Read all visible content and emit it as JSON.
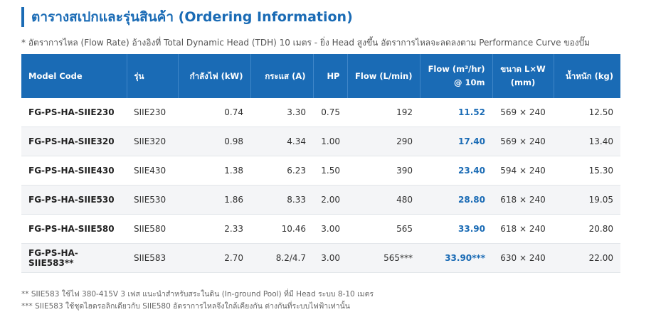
{
  "header": {
    "title": "ตารางสเปกและรุ่นสินค้า (Ordering Information)",
    "note": "* อัตราการไหล (Flow Rate) อ้างอิงที่ Total Dynamic Head (TDH) 10 เมตร - ยิ่ง Head สูงขึ้น อัตราการไหลจะลดลงตาม Performance Curve ของปั๊ม"
  },
  "table": {
    "headers": [
      [
        "Model Code"
      ],
      [
        "รุ่น"
      ],
      [
        "กำลังไฟ (kW)"
      ],
      [
        "กระแส (A)"
      ],
      [
        "HP"
      ],
      [
        "Flow (L/min)"
      ],
      [
        "Flow (m³/hr)",
        "@ 10m"
      ],
      [
        "ขนาด L×W",
        "(mm)"
      ],
      [
        "น้ำหนัก (kg)"
      ]
    ],
    "rows": [
      [
        "FG-PS-HA-SIIE230",
        "SIIE230",
        "0.74",
        "3.30",
        "0.75",
        "192",
        "11.52",
        "569 × 240",
        "12.50"
      ],
      [
        "FG-PS-HA-SIIE320",
        "SIIE320",
        "0.98",
        "4.34",
        "1.00",
        "290",
        "17.40",
        "569 × 240",
        "13.40"
      ],
      [
        "FG-PS-HA-SIIE430",
        "SIIE430",
        "1.38",
        "6.23",
        "1.50",
        "390",
        "23.40",
        "594 × 240",
        "15.30"
      ],
      [
        "FG-PS-HA-SIIE530",
        "SIIE530",
        "1.86",
        "8.33",
        "2.00",
        "480",
        "28.80",
        "618 × 240",
        "19.05"
      ],
      [
        "FG-PS-HA-SIIE580",
        "SIIE580",
        "2.33",
        "10.46",
        "3.00",
        "565",
        "33.90",
        "618 × 240",
        "20.80"
      ],
      [
        "FG-PS-HA-SIIE583**",
        "SIIE583",
        "2.70",
        "8.2/4.7",
        "3.00",
        "565***",
        "33.90***",
        "630 × 240",
        "22.00"
      ]
    ]
  },
  "footnotes": [
    "** SIIE583 ใช้ไฟ 380-415V 3 เฟส แนะนำสำหรับสระในดิน (In-ground Pool) ที่มี Head ระบบ 8-10 เมตร",
    "*** SIIE583 ใช้ชุดไฮดรอลิกเดียวกับ SIIE580 อัตราการไหลจึงใกล้เคียงกัน ต่างกันที่ระบบไฟฟ้าเท่านั้น"
  ]
}
